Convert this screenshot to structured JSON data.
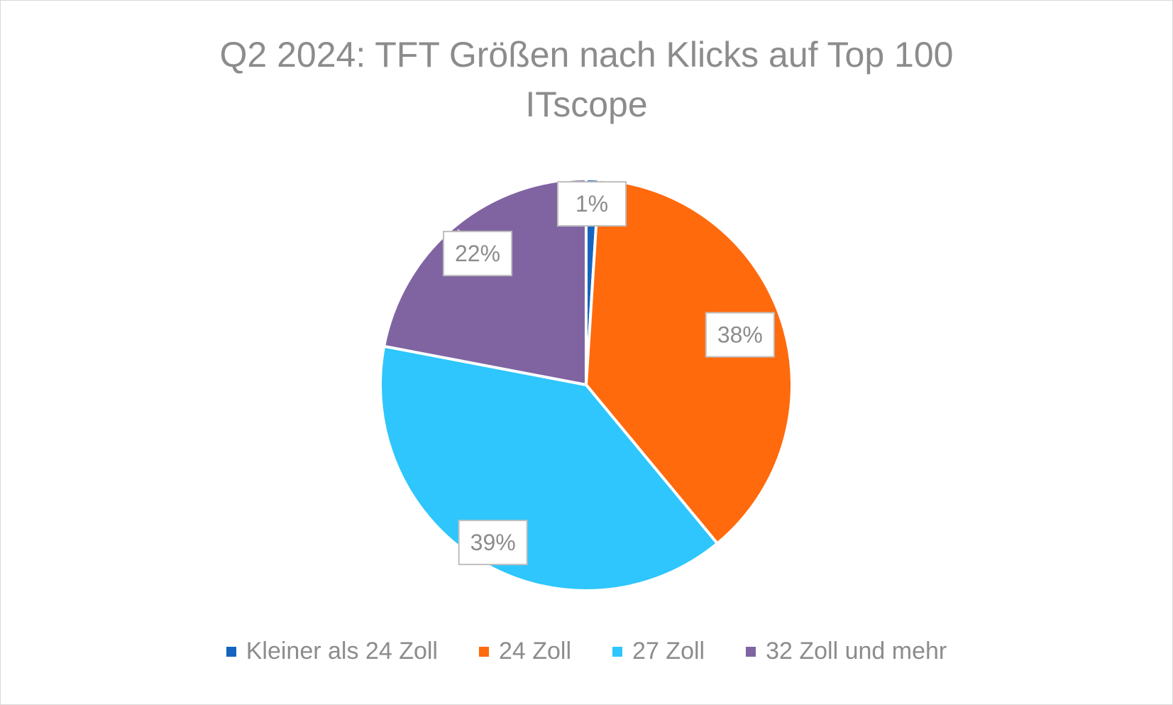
{
  "chart_data": {
    "type": "pie",
    "title": "Q2 2024: TFT Größen nach Klicks auf Top 100 ITscope",
    "title_lines": [
      "Q2 2024: TFT Größen nach Klicks auf Top 100",
      "ITscope"
    ],
    "categories": [
      "Kleiner als 24 Zoll",
      "24 Zoll",
      "27 Zoll",
      "32 Zoll und mehr"
    ],
    "values": [
      1,
      38,
      39,
      22
    ],
    "data_labels": [
      "1%",
      "38%",
      "39%",
      "22%"
    ],
    "colors": [
      "#1565c0",
      "#ff6a0d",
      "#2ec6fc",
      "#8064a2"
    ],
    "legend_position": "bottom",
    "start_angle_deg": 0,
    "direction": "clockwise"
  }
}
